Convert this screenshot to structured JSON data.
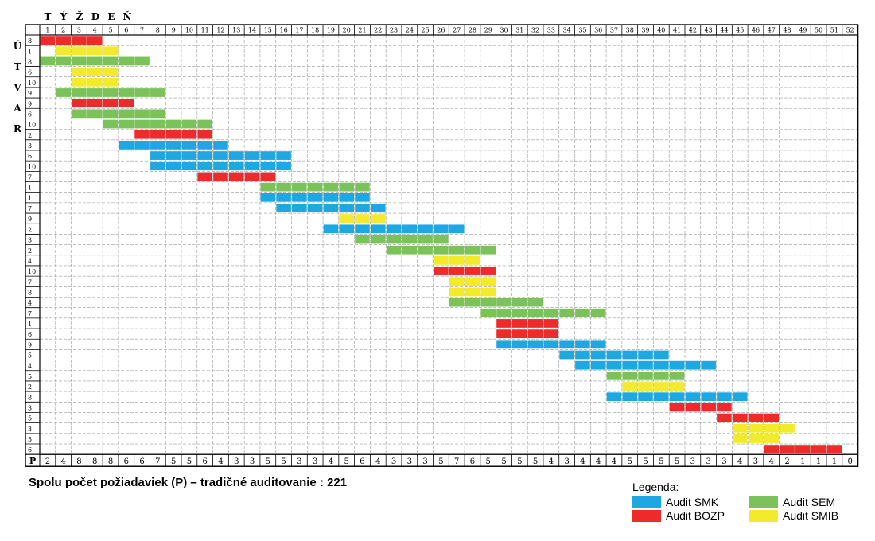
{
  "header_label": "T Ý Ž D E Ň",
  "side_label": [
    "Ú",
    "T",
    "V",
    "A",
    "R"
  ],
  "corner_label": "P",
  "total_text": "Spolu počet požiadaviek (P) – tradičné auditovanie : 221",
  "legend": {
    "title": "Legenda:",
    "items": [
      {
        "label": "Audit SMK",
        "color": "#1ea7e1"
      },
      {
        "label": "Audit SEM",
        "color": "#7cc25b"
      },
      {
        "label": "Audit BOZP",
        "color": "#ee2b2b"
      },
      {
        "label": "Audit SMIB",
        "color": "#f2ea2a"
      }
    ]
  },
  "chart_data": {
    "type": "heatmap",
    "weeks": [
      1,
      2,
      3,
      4,
      5,
      6,
      7,
      8,
      9,
      10,
      11,
      12,
      13,
      14,
      15,
      16,
      17,
      18,
      19,
      20,
      21,
      22,
      23,
      24,
      25,
      26,
      27,
      28,
      29,
      30,
      31,
      32,
      33,
      34,
      35,
      36,
      37,
      38,
      39,
      40,
      41,
      42,
      43,
      44,
      45,
      46,
      47,
      48,
      49,
      50,
      51,
      52
    ],
    "rows": [
      {
        "label": "8",
        "audit": "BOZP",
        "start": 1,
        "end": 4
      },
      {
        "label": "1",
        "audit": "SMIB",
        "start": 2,
        "end": 5
      },
      {
        "label": "8",
        "audit": "SEM",
        "start": 1,
        "end": 7
      },
      {
        "label": "6",
        "audit": "SMIB",
        "start": 3,
        "end": 5
      },
      {
        "label": "10",
        "audit": "SMIB",
        "start": 3,
        "end": 5
      },
      {
        "label": "9",
        "audit": "SEM",
        "start": 2,
        "end": 8
      },
      {
        "label": "9",
        "audit": "BOZP",
        "start": 3,
        "end": 6
      },
      {
        "label": "6",
        "audit": "SEM",
        "start": 3,
        "end": 8
      },
      {
        "label": "10",
        "audit": "SEM",
        "start": 5,
        "end": 11
      },
      {
        "label": "2",
        "audit": "BOZP",
        "start": 7,
        "end": 11
      },
      {
        "label": "3",
        "audit": "SMK",
        "start": 6,
        "end": 12
      },
      {
        "label": "6",
        "audit": "SMK",
        "start": 8,
        "end": 16
      },
      {
        "label": "10",
        "audit": "SMK",
        "start": 8,
        "end": 16
      },
      {
        "label": "7",
        "audit": "BOZP",
        "start": 11,
        "end": 15
      },
      {
        "label": "1",
        "audit": "SEM",
        "start": 15,
        "end": 21
      },
      {
        "label": "1",
        "audit": "SMK",
        "start": 15,
        "end": 21
      },
      {
        "label": "7",
        "audit": "SMK",
        "start": 16,
        "end": 22
      },
      {
        "label": "9",
        "audit": "SMIB",
        "start": 20,
        "end": 22
      },
      {
        "label": "2",
        "audit": "SMK",
        "start": 19,
        "end": 27
      },
      {
        "label": "3",
        "audit": "SEM",
        "start": 21,
        "end": 26
      },
      {
        "label": "2",
        "audit": "SEM",
        "start": 23,
        "end": 29
      },
      {
        "label": "4",
        "audit": "SMIB",
        "start": 26,
        "end": 28
      },
      {
        "label": "10",
        "audit": "BOZP",
        "start": 26,
        "end": 29
      },
      {
        "label": "7",
        "audit": "SMIB",
        "start": 27,
        "end": 29
      },
      {
        "label": "8",
        "audit": "SMIB",
        "start": 27,
        "end": 29
      },
      {
        "label": "4",
        "audit": "SEM",
        "start": 27,
        "end": 32
      },
      {
        "label": "7",
        "audit": "SEM",
        "start": 29,
        "end": 36
      },
      {
        "label": "1",
        "audit": "BOZP",
        "start": 30,
        "end": 33
      },
      {
        "label": "6",
        "audit": "BOZP",
        "start": 30,
        "end": 33
      },
      {
        "label": "9",
        "audit": "SMK",
        "start": 30,
        "end": 36
      },
      {
        "label": "5",
        "audit": "SMK",
        "start": 34,
        "end": 40
      },
      {
        "label": "4",
        "audit": "SMK",
        "start": 35,
        "end": 43
      },
      {
        "label": "5",
        "audit": "SEM",
        "start": 37,
        "end": 41
      },
      {
        "label": "2",
        "audit": "SMIB",
        "start": 38,
        "end": 41
      },
      {
        "label": "8",
        "audit": "SMK",
        "start": 37,
        "end": 45
      },
      {
        "label": "3",
        "audit": "BOZP",
        "start": 41,
        "end": 44
      },
      {
        "label": "5",
        "audit": "BOZP",
        "start": 44,
        "end": 47
      },
      {
        "label": "3",
        "audit": "SMIB",
        "start": 45,
        "end": 48
      },
      {
        "label": "5",
        "audit": "SMIB",
        "start": 45,
        "end": 47
      },
      {
        "label": "6",
        "audit": "BOZP",
        "start": 47,
        "end": 51
      }
    ],
    "p_values": [
      2,
      4,
      8,
      8,
      8,
      6,
      6,
      7,
      5,
      5,
      6,
      4,
      3,
      3,
      5,
      5,
      3,
      3,
      4,
      5,
      6,
      4,
      3,
      3,
      3,
      5,
      7,
      6,
      5,
      5,
      5,
      5,
      4,
      3,
      4,
      4,
      4,
      5,
      5,
      5,
      5,
      3,
      3,
      3,
      4,
      3,
      4,
      2,
      1,
      1,
      1,
      0
    ]
  }
}
